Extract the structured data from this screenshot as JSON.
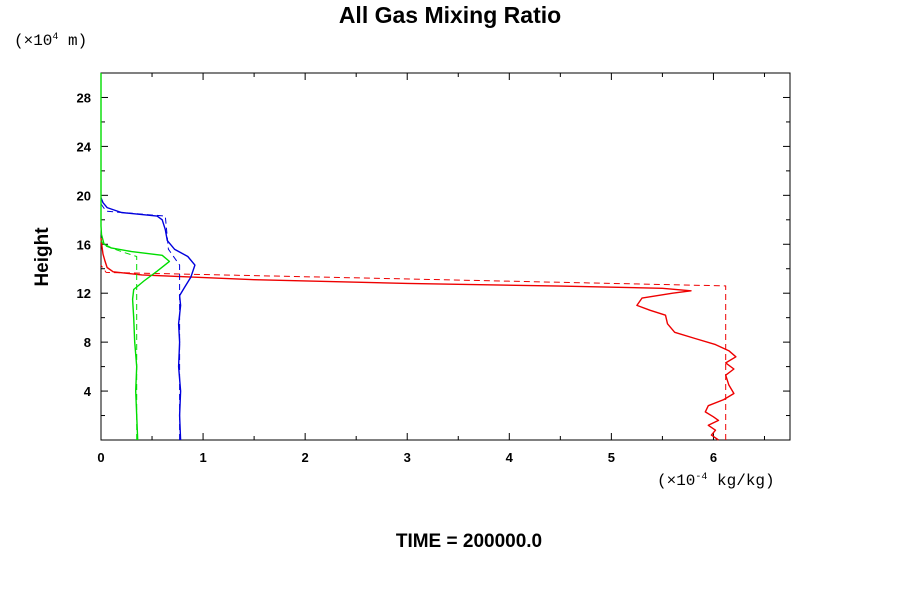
{
  "chart_data": {
    "type": "line",
    "title": "All Gas Mixing Ratio",
    "ylabel": "Height",
    "y_units": {
      "prefix": "(×10",
      "exp": "4",
      "suffix": " m)"
    },
    "x_units": {
      "prefix": "(×10",
      "exp": "-4",
      "suffix": " kg/kg)"
    },
    "time_label": "TIME = 200000.0",
    "xlim": [
      0,
      6.75
    ],
    "ylim": [
      0,
      30
    ],
    "x_ticks": [
      0,
      1,
      2,
      3,
      4,
      5,
      6
    ],
    "y_ticks": [
      4,
      8,
      12,
      16,
      20,
      24,
      28
    ],
    "x_tick_labels": [
      "0",
      "1",
      "2",
      "3",
      "4",
      "5",
      "6"
    ],
    "y_tick_labels": [
      "4",
      "8",
      "12",
      "16",
      "20",
      "24",
      "28"
    ],
    "series": [
      {
        "color": "#ee0000",
        "style": "solid",
        "points": [
          [
            6.05,
            0
          ],
          [
            5.98,
            0.4
          ],
          [
            6.02,
            0.8
          ],
          [
            5.95,
            1.2
          ],
          [
            6.05,
            1.6
          ],
          [
            6.0,
            1.9
          ],
          [
            5.92,
            2.3
          ],
          [
            5.95,
            2.8
          ],
          [
            6.1,
            3.3
          ],
          [
            6.2,
            3.8
          ],
          [
            6.15,
            4.5
          ],
          [
            6.12,
            5.3
          ],
          [
            6.2,
            5.8
          ],
          [
            6.12,
            6.3
          ],
          [
            6.22,
            6.8
          ],
          [
            6.15,
            7.3
          ],
          [
            6.02,
            7.8
          ],
          [
            5.82,
            8.3
          ],
          [
            5.62,
            8.8
          ],
          [
            5.55,
            9.5
          ],
          [
            5.53,
            10.2
          ],
          [
            5.38,
            10.6
          ],
          [
            5.25,
            11.0
          ],
          [
            5.3,
            11.6
          ],
          [
            5.6,
            12.0
          ],
          [
            5.78,
            12.2
          ],
          [
            5.5,
            12.4
          ],
          [
            4.5,
            12.58
          ],
          [
            3.0,
            12.8
          ],
          [
            1.5,
            13.1
          ],
          [
            0.4,
            13.5
          ],
          [
            0.12,
            13.75
          ],
          [
            0.06,
            14.1
          ],
          [
            0.04,
            14.6
          ],
          [
            0.02,
            15.2
          ],
          [
            0.01,
            15.8
          ],
          [
            0,
            16.5
          ]
        ]
      },
      {
        "color": "#ee0000",
        "style": "dashed",
        "points": [
          [
            6.12,
            0
          ],
          [
            6.12,
            12.6
          ],
          [
            0.05,
            13.7
          ],
          [
            0,
            14.3
          ]
        ]
      },
      {
        "color": "#0000dd",
        "style": "solid",
        "points": [
          [
            0.78,
            0
          ],
          [
            0.77,
            2
          ],
          [
            0.78,
            4
          ],
          [
            0.76,
            6
          ],
          [
            0.77,
            8
          ],
          [
            0.76,
            9.5
          ],
          [
            0.78,
            11
          ],
          [
            0.77,
            11.8
          ],
          [
            0.82,
            12.5
          ],
          [
            0.88,
            13.3
          ],
          [
            0.92,
            14.3
          ],
          [
            0.85,
            15.0
          ],
          [
            0.72,
            15.6
          ],
          [
            0.65,
            16.3
          ],
          [
            0.63,
            17.2
          ],
          [
            0.6,
            18.0
          ],
          [
            0.55,
            18.3
          ],
          [
            0.2,
            18.6
          ],
          [
            0.06,
            19.0
          ],
          [
            0.02,
            19.4
          ],
          [
            0,
            19.8
          ]
        ]
      },
      {
        "color": "#0000dd",
        "style": "dashed",
        "points": [
          [
            0.77,
            0
          ],
          [
            0.77,
            14.3
          ],
          [
            0.66,
            15.6
          ],
          [
            0.63,
            18.3
          ],
          [
            0.05,
            18.7
          ],
          [
            0,
            19.3
          ]
        ]
      },
      {
        "color": "#00dd00",
        "style": "solid",
        "points": [
          [
            0.36,
            0
          ],
          [
            0.35,
            2
          ],
          [
            0.34,
            4
          ],
          [
            0.35,
            6
          ],
          [
            0.33,
            8
          ],
          [
            0.32,
            10
          ],
          [
            0.31,
            11.5
          ],
          [
            0.32,
            12.3
          ],
          [
            0.42,
            13.0
          ],
          [
            0.55,
            13.8
          ],
          [
            0.67,
            14.6
          ],
          [
            0.6,
            15.1
          ],
          [
            0.3,
            15.4
          ],
          [
            0.1,
            15.7
          ],
          [
            0.03,
            16.0
          ],
          [
            0.005,
            16.8
          ],
          [
            0,
            17.5
          ],
          [
            0,
            30
          ]
        ]
      },
      {
        "color": "#00dd00",
        "style": "dashed",
        "points": [
          [
            0.35,
            0
          ],
          [
            0.35,
            15.0
          ],
          [
            0.2,
            15.4
          ],
          [
            0.03,
            15.9
          ],
          [
            0,
            16.3
          ]
        ]
      }
    ]
  }
}
